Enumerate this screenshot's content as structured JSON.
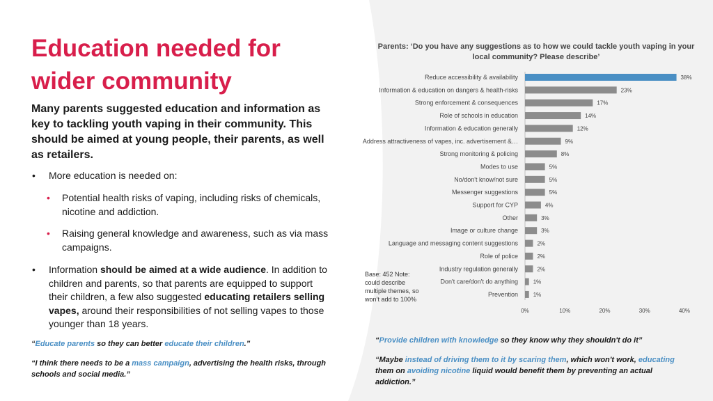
{
  "heading": "Education needed for wider community",
  "intro": "Many parents suggested education and information as key to tackling youth vaping in their community. This should be aimed at young people, their parents, as well as retailers.",
  "bullets": {
    "b1": "More education is needed on:",
    "s1": "Potential health risks of vaping, including risks of chemicals, nicotine and addiction.",
    "s2": "Raising general knowledge and awareness, such as via mass campaigns.",
    "b2_pre": "Information ",
    "b2_bold1": "should be aimed at a wide audience",
    "b2_mid": ". In addition to children and parents, so that parents are equipped to support their children, a few also suggested ",
    "b2_bold2": "educating retailers selling vapes,",
    "b2_post": " around their responsibilities of not selling vapes to those younger than 18 years."
  },
  "quotes": {
    "q1": {
      "open": "“",
      "hl1": "Educate parents",
      "mid": " so they can better ",
      "hl2": "educate their children",
      "close": ".”"
    },
    "q2": {
      "pre": "“I think there needs to be a ",
      "hl": "mass campaign",
      "post": ", advertising the health risks, through schools and social media.”"
    },
    "q3": {
      "open": "“",
      "hl": "Provide children with knowledge",
      "post": " so they know why they shouldn't do it”"
    },
    "q4": {
      "pre": "“Maybe ",
      "hl1": "instead of driving them to it by scaring them",
      "mid1": ", which won't work, ",
      "hl2": "educating",
      "mid2": " them on ",
      "hl3": "avoiding nicotine",
      "post": " liquid would benefit them by preventing an actual addiction.”"
    }
  },
  "chart_data": {
    "type": "bar",
    "orientation": "horizontal",
    "title": "Parents: ‘Do you have any suggestions as to how we could tackle youth vaping in your local community? Please describe’",
    "categories": [
      "Reduce accessibility & availability",
      "Information & education on dangers & health-risks",
      "Strong enforcement & consequences",
      "Role of schools in education",
      "Information & education generally",
      "Address attractiveness of vapes, inc. advertisement &…",
      "Strong monitoring & policing",
      "Modes to use",
      "No/don't know/not sure",
      "Messenger suggestions",
      "Support for CYP",
      "Other",
      "Image or culture change",
      "Language and messaging content suggestions",
      "Role of police",
      "Industry regulation generally",
      "Don't care/don't do anything",
      "Prevention"
    ],
    "values": [
      38,
      23,
      17,
      14,
      12,
      9,
      8,
      5,
      5,
      5,
      4,
      3,
      3,
      2,
      2,
      2,
      1,
      1
    ],
    "value_labels": [
      "38%",
      "23%",
      "17%",
      "14%",
      "12%",
      "9%",
      "8%",
      "5%",
      "5%",
      "5%",
      "4%",
      "3%",
      "3%",
      "2%",
      "2%",
      "2%",
      "1%",
      "1%"
    ],
    "xlim": [
      0,
      40
    ],
    "xticks": [
      0,
      10,
      20,
      30,
      40
    ],
    "xtick_labels": [
      "0%",
      "10%",
      "20%",
      "30%",
      "40%"
    ],
    "base_note": "Base: 452 Note: could describe multiple themes, so won’t add to 100%",
    "colors": {
      "top": "#4a8fc4",
      "rest": "#8c8c8c"
    }
  }
}
